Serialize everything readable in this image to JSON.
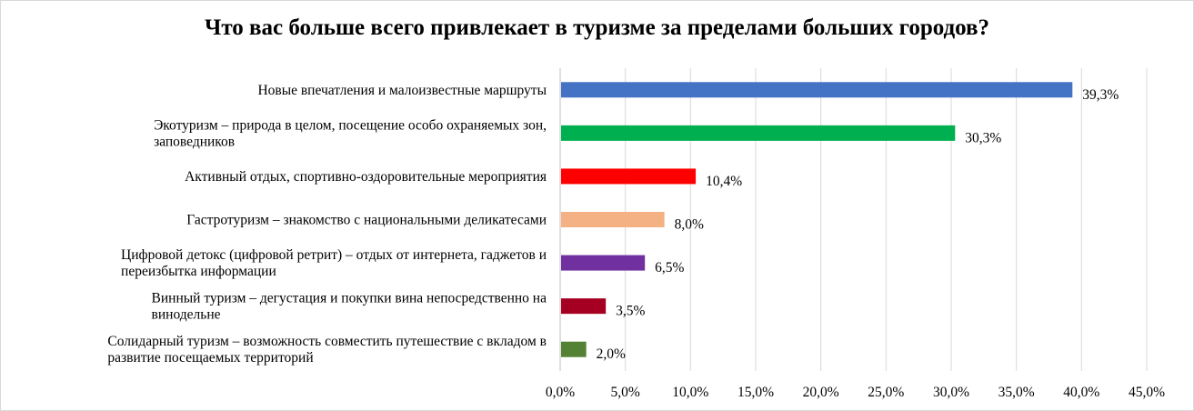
{
  "chart_data": {
    "type": "bar",
    "orientation": "horizontal",
    "title": "Что вас больше всего привлекает в туризме за пределами больших городов?",
    "categories": [
      [
        "Новые впечатления  и малоизвестные маршруты"
      ],
      [
        "Экотуризм – природа в целом, посещение особо охраняемых зон,",
        "заповедников"
      ],
      [
        "Активный отдых, спортивно-оздоровительные мероприятия"
      ],
      [
        "Гастротуризм – знакомство с национальными деликатесами"
      ],
      [
        "Цифровой детокс (цифровой ретрит) – отдых от интернета, гаджетов и",
        "переизбытка информации"
      ],
      [
        "Винный туризм – дегустация и покупки вина непосредственно на",
        "винодельне"
      ],
      [
        "Солидарный туризм – возможность совместить путешествие с вкладом в",
        "развитие посещаемых территорий"
      ]
    ],
    "values": [
      39.3,
      30.3,
      10.4,
      8.0,
      6.5,
      3.5,
      2.0
    ],
    "value_labels": [
      "39,3%",
      "30,3%",
      "10,4%",
      "8,0%",
      "6,5%",
      "3,5%",
      "2,0%"
    ],
    "colors": [
      "#4472c4",
      "#00b050",
      "#ff0000",
      "#f4b183",
      "#7030a0",
      "#a50021",
      "#548235"
    ],
    "xlim": [
      0,
      45
    ],
    "xticks": [
      0,
      5,
      10,
      15,
      20,
      25,
      30,
      35,
      40,
      45
    ],
    "xtick_labels": [
      "0,0%",
      "5,0%",
      "10,0%",
      "15,0%",
      "20,0%",
      "25,0%",
      "30,0%",
      "35,0%",
      "40,0%",
      "45,0%"
    ],
    "xlabel": "",
    "ylabel": "",
    "grid": "vertical",
    "legend": "none"
  }
}
